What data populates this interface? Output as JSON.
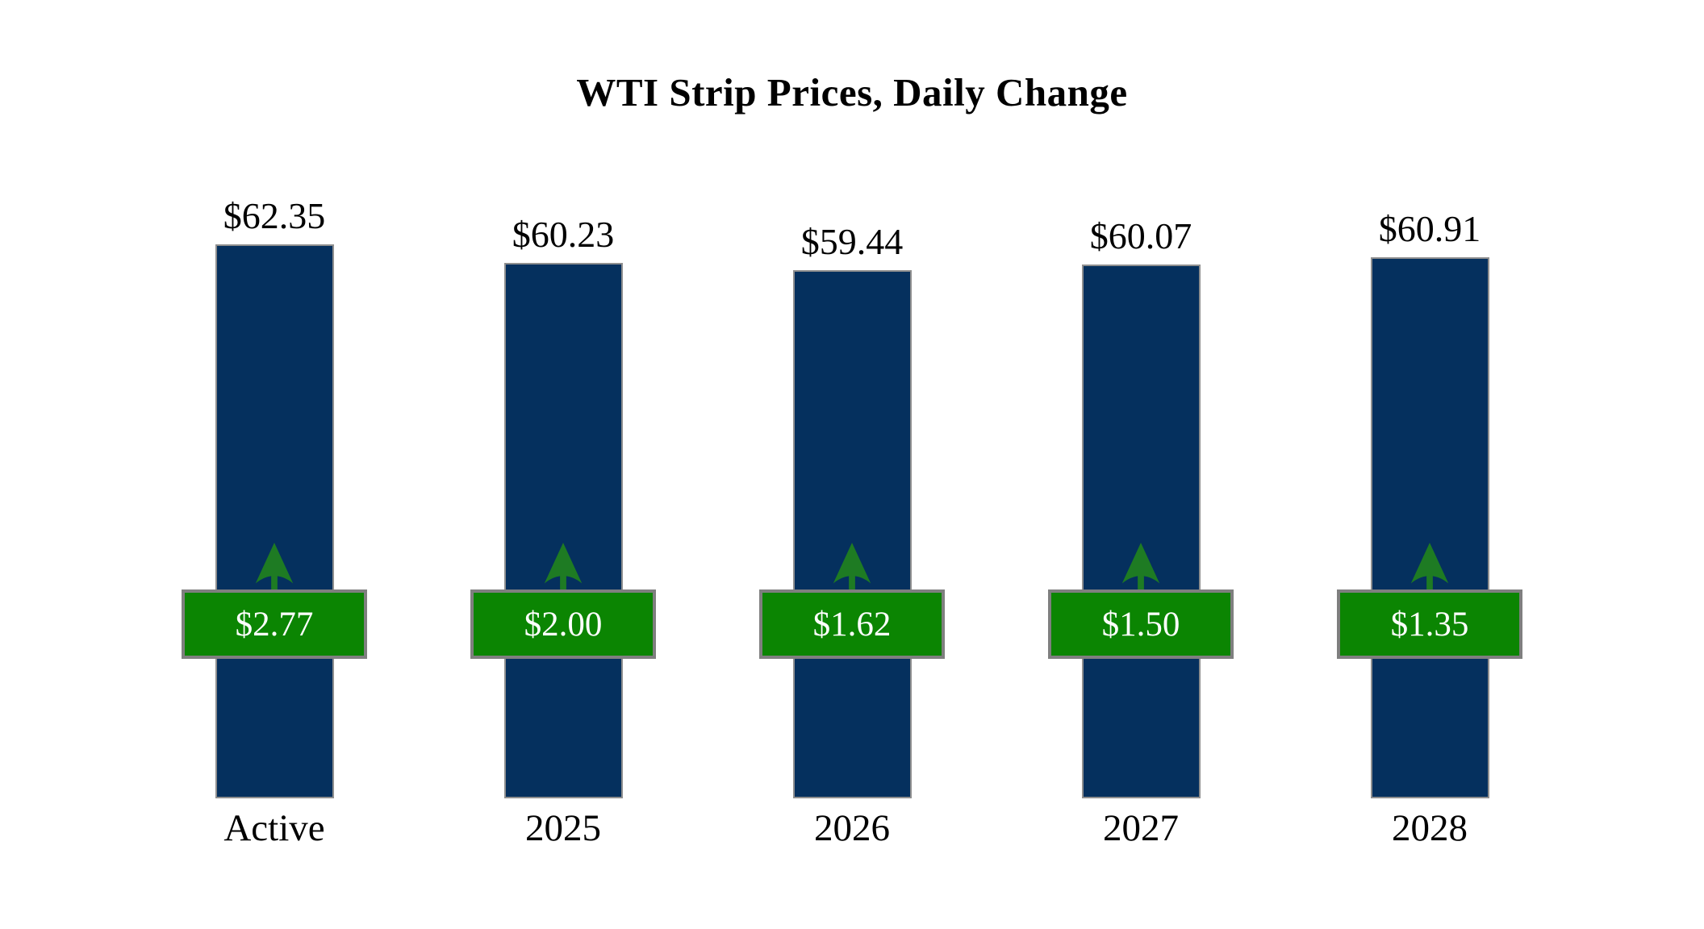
{
  "title": "WTI Strip Prices, Daily Change",
  "colors": {
    "bar_fill": "#05305e",
    "bar_border": "#8f8f8f",
    "badge_fill": "#0b8502",
    "badge_border": "#7f7f7f",
    "arrow_green": "#1e7b23",
    "badge_text": "#ffffff",
    "label_text": "#000000",
    "background": "#ffffff"
  },
  "chart_data": {
    "type": "bar",
    "title": "WTI Strip Prices, Daily Change",
    "categories": [
      "Active",
      "2025",
      "2026",
      "2027",
      "2028"
    ],
    "series": [
      {
        "name": "WTI strip price",
        "values": [
          62.35,
          60.23,
          59.44,
          60.07,
          60.91
        ]
      },
      {
        "name": "Daily change",
        "values": [
          2.77,
          2.0,
          1.62,
          1.5,
          1.35
        ]
      }
    ],
    "price_labels": [
      "$62.35",
      "$60.23",
      "$59.44",
      "$60.07",
      "$60.91"
    ],
    "change_labels": [
      "$2.77",
      "$2.00",
      "$1.62",
      "$1.50",
      "$1.35"
    ],
    "change_direction": "up",
    "xlabel": "",
    "ylabel": "",
    "ylim": [
      0,
      65
    ],
    "grid": false,
    "legend": "none"
  }
}
